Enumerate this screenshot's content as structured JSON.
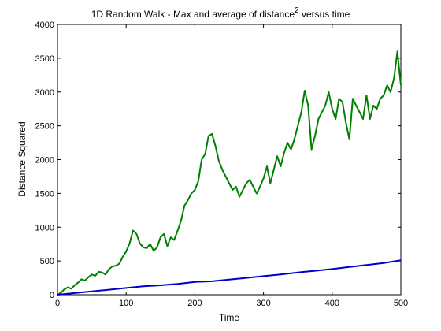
{
  "chart_data": {
    "type": "line",
    "title_main": "1D Random Walk - Max and average of distance",
    "title_sup": "2",
    "title_tail": " versus time",
    "xlabel": "Time",
    "ylabel": "Distance Squared",
    "xlim": [
      0,
      500
    ],
    "ylim": [
      0,
      4000
    ],
    "xticks": [
      0,
      100,
      200,
      300,
      400,
      500
    ],
    "yticks": [
      0,
      500,
      1000,
      1500,
      2000,
      2500,
      3000,
      3500,
      4000
    ],
    "grid": false,
    "colors": {
      "max": "#008000",
      "avg": "#0000cc"
    },
    "series": [
      {
        "x": [
          0,
          5,
          10,
          15,
          20,
          25,
          30,
          35,
          40,
          45,
          50,
          55,
          60,
          65,
          70,
          75,
          80,
          85,
          90,
          95,
          100,
          105,
          110,
          115,
          120,
          125,
          130,
          135,
          140,
          145,
          150,
          155,
          160,
          165,
          170,
          175,
          180,
          185,
          190,
          195,
          200,
          205,
          210,
          215,
          220,
          225,
          230,
          235,
          240,
          245,
          250,
          255,
          260,
          265,
          270,
          275,
          280,
          285,
          290,
          295,
          300,
          305,
          310,
          315,
          320,
          325,
          330,
          335,
          340,
          345,
          350,
          355,
          360,
          365,
          370,
          375,
          380,
          385,
          390,
          395,
          400,
          405,
          410,
          415,
          420,
          425,
          430,
          435,
          440,
          445,
          450,
          455,
          460,
          465,
          470,
          475,
          480,
          485,
          490,
          495,
          500
        ],
        "values": [
          0,
          30,
          80,
          110,
          90,
          140,
          180,
          230,
          210,
          260,
          300,
          280,
          340,
          330,
          300,
          380,
          420,
          430,
          460,
          560,
          640,
          760,
          950,
          900,
          760,
          700,
          690,
          750,
          650,
          700,
          850,
          900,
          720,
          850,
          810,
          950,
          1100,
          1320,
          1400,
          1500,
          1550,
          1680,
          2000,
          2080,
          2350,
          2380,
          2200,
          1980,
          1850,
          1750,
          1650,
          1550,
          1600,
          1450,
          1550,
          1650,
          1700,
          1600,
          1500,
          1600,
          1720,
          1900,
          1650,
          1850,
          2050,
          1900,
          2100,
          2250,
          2150,
          2300,
          2500,
          2700,
          3020,
          2800,
          2150,
          2350,
          2600,
          2700,
          2800,
          3000,
          2750,
          2600,
          2900,
          2850,
          2550,
          2300,
          2900,
          2800,
          2700,
          2600,
          2950,
          2600,
          2800,
          2750,
          2900,
          2950,
          3100,
          3000,
          3200,
          3600,
          3100
        ]
      },
      {
        "x": [
          0,
          25,
          50,
          75,
          100,
          125,
          150,
          175,
          200,
          225,
          250,
          275,
          300,
          325,
          350,
          375,
          400,
          425,
          450,
          475,
          500
        ],
        "values": [
          0,
          25,
          50,
          75,
          100,
          125,
          140,
          160,
          190,
          200,
          225,
          250,
          275,
          300,
          330,
          355,
          380,
          410,
          440,
          470,
          510
        ]
      }
    ]
  }
}
